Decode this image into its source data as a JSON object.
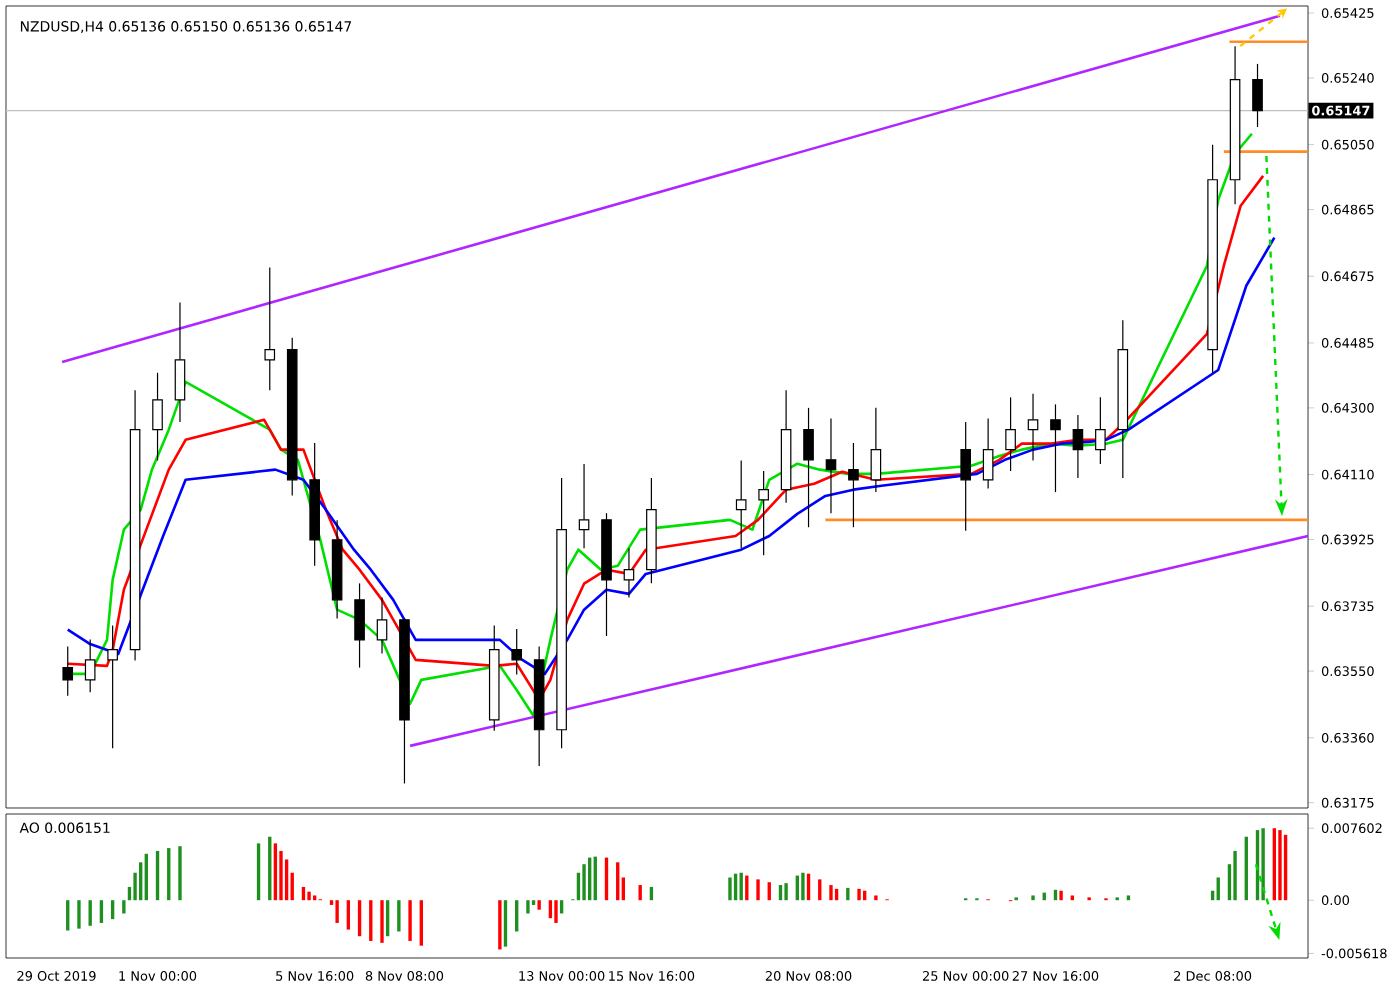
{
  "chart_data": [
    {
      "type": "candlestick",
      "title": "NZDUSD,H4 0.65136 0.65150 0.65136 0.65147",
      "xlim": [
        "2019-10-27T12:00",
        "2019-12-05T04:00"
      ],
      "ylim": [
        0.6316,
        0.65445
      ],
      "tick_labels": "y",
      "yticks": [
        {
          "value": 0.63175,
          "label": "0.63175"
        },
        {
          "value": 0.6336,
          "label": "0.63360"
        },
        {
          "value": 0.6355,
          "label": "0.63550"
        },
        {
          "value": 0.63735,
          "label": "0.63735"
        },
        {
          "value": 0.63925,
          "label": "0.63925"
        },
        {
          "value": 0.6411,
          "label": "0.64110"
        },
        {
          "value": 0.643,
          "label": "0.64300"
        },
        {
          "value": 0.64485,
          "label": "0.64485"
        },
        {
          "value": 0.64675,
          "label": "0.64675"
        },
        {
          "value": 0.64865,
          "label": "0.64865"
        },
        {
          "value": 0.6505,
          "label": "0.65050"
        },
        {
          "value": 0.6524,
          "label": "0.65240"
        },
        {
          "value": 0.65425,
          "label": "0.65425"
        }
      ],
      "ref_lines": [
        {
          "axis": "y",
          "value": 0.65147,
          "label": "0.65147",
          "color": "#c0c0c0"
        }
      ],
      "x": [
        "2019-10-29T08:00",
        "2019-10-30T00:00",
        "2019-10-30T16:00",
        "2019-10-31T08:00",
        "2019-11-01T00:00",
        "2019-11-01T16:00",
        "2019-11-04T08:00",
        "2019-11-05T00:00",
        "2019-11-05T16:00",
        "2019-11-06T08:00",
        "2019-11-07T00:00",
        "2019-11-07T16:00",
        "2019-11-08T08:00",
        "2019-11-11T00:00",
        "2019-11-11T16:00",
        "2019-11-12T08:00",
        "2019-11-13T00:00",
        "2019-11-13T16:00",
        "2019-11-14T08:00",
        "2019-11-15T00:00",
        "2019-11-15T16:00",
        "2019-11-18T08:00",
        "2019-11-19T00:00",
        "2019-11-19T16:00",
        "2019-11-20T08:00",
        "2019-11-21T00:00",
        "2019-11-21T16:00",
        "2019-11-22T08:00",
        "2019-11-25T00:00",
        "2019-11-25T16:00",
        "2019-11-26T08:00",
        "2019-11-27T00:00",
        "2019-11-27T16:00",
        "2019-11-28T08:00",
        "2019-11-29T00:00",
        "2019-11-29T16:00",
        "2019-12-02T08:00",
        "2019-12-03T00:00",
        "2019-12-03T16:00"
      ],
      "ohlc": [
        [
          0.6356,
          0.6362,
          0.6348,
          0.63525
        ],
        [
          0.63525,
          0.6364,
          0.6349,
          0.63582
        ],
        [
          0.63582,
          0.6368,
          0.6333,
          0.63611
        ],
        [
          0.63611,
          0.6435,
          0.6358,
          0.64238
        ],
        [
          0.64238,
          0.644,
          0.6415,
          0.64323
        ],
        [
          0.64323,
          0.646,
          0.6426,
          0.64437
        ],
        [
          0.64437,
          0.647,
          0.6435,
          0.64466
        ],
        [
          0.64466,
          0.645,
          0.6405,
          0.64095
        ],
        [
          0.64095,
          0.642,
          0.6385,
          0.63924
        ],
        [
          0.63924,
          0.6398,
          0.637,
          0.63753
        ],
        [
          0.63753,
          0.638,
          0.6356,
          0.63639
        ],
        [
          0.63639,
          0.6376,
          0.636,
          0.63696
        ],
        [
          0.63696,
          0.637,
          0.6323,
          0.63411
        ],
        [
          0.63411,
          0.6368,
          0.6338,
          0.63611
        ],
        [
          0.63611,
          0.6367,
          0.6354,
          0.63582
        ],
        [
          0.63582,
          0.6362,
          0.6328,
          0.63383
        ],
        [
          0.63383,
          0.641,
          0.6333,
          0.63953
        ],
        [
          0.63953,
          0.6414,
          0.639,
          0.63981
        ],
        [
          0.63981,
          0.64,
          0.6365,
          0.6381
        ],
        [
          0.6381,
          0.639,
          0.6376,
          0.63839
        ],
        [
          0.63839,
          0.641,
          0.638,
          0.6401
        ],
        [
          0.6401,
          0.6415,
          0.639,
          0.64038
        ],
        [
          0.64038,
          0.6412,
          0.6388,
          0.64067
        ],
        [
          0.64067,
          0.6435,
          0.6403,
          0.64238
        ],
        [
          0.64238,
          0.643,
          0.6396,
          0.64152
        ],
        [
          0.64152,
          0.6427,
          0.64,
          0.64124
        ],
        [
          0.64124,
          0.642,
          0.6396,
          0.64095
        ],
        [
          0.64095,
          0.643,
          0.6406,
          0.64181
        ],
        [
          0.64181,
          0.6426,
          0.6395,
          0.64095
        ],
        [
          0.64095,
          0.6427,
          0.6407,
          0.64181
        ],
        [
          0.64181,
          0.6433,
          0.6412,
          0.64238
        ],
        [
          0.64238,
          0.6434,
          0.6415,
          0.64266
        ],
        [
          0.64266,
          0.6431,
          0.6406,
          0.64238
        ],
        [
          0.64238,
          0.6428,
          0.641,
          0.64181
        ],
        [
          0.64181,
          0.6433,
          0.6414,
          0.64238
        ],
        [
          0.64238,
          0.6455,
          0.641,
          0.64466
        ],
        [
          0.64466,
          0.6505,
          0.644,
          0.6495
        ],
        [
          0.6495,
          0.6533,
          0.6488,
          0.65235
        ],
        [
          0.65235,
          0.6528,
          0.651,
          0.65147
        ]
      ],
      "series": [
        {
          "type": "line",
          "color": "#00e000",
          "x": [
            "2019-10-29T08:00",
            "2019-10-30T00:00",
            "2019-10-30T12:00",
            "2019-10-30T16:00",
            "2019-10-31T00:00",
            "2019-10-31T12:00",
            "2019-10-31T20:00",
            "2019-11-01T08:00",
            "2019-11-01T20:00",
            "2019-11-04T08:00",
            "2019-11-04T16:00",
            "2019-11-05T04:00",
            "2019-11-05T20:00",
            "2019-11-06T08:00",
            "2019-11-07T00:00",
            "2019-11-07T16:00",
            "2019-11-08T12:00",
            "2019-11-08T20:00",
            "2019-11-11T04:00",
            "2019-11-11T16:00",
            "2019-11-12T04:00",
            "2019-11-12T16:00",
            "2019-11-13T04:00",
            "2019-11-13T12:00",
            "2019-11-14T04:00",
            "2019-11-14T16:00",
            "2019-11-15T08:00",
            "2019-11-18T00:00",
            "2019-11-18T16:00",
            "2019-11-19T04:00",
            "2019-11-20T00:00",
            "2019-11-20T16:00",
            "2019-11-21T12:00",
            "2019-11-22T08:00",
            "2019-11-25T04:00",
            "2019-11-26T00:00",
            "2019-11-26T16:00",
            "2019-11-27T12:00",
            "2019-11-28T08:00",
            "2019-11-29T04:00",
            "2019-11-29T16:00",
            "2019-12-02T04:00",
            "2019-12-02T12:00",
            "2019-12-03T00:00",
            "2019-12-03T12:00"
          ],
          "values": [
            0.63542,
            0.63542,
            0.63639,
            0.6381,
            0.63953,
            0.6401,
            0.64124,
            0.64238,
            0.64374,
            0.64238,
            0.64181,
            0.64152,
            0.63924,
            0.63725,
            0.63696,
            0.63639,
            0.63457,
            0.63525,
            0.63565,
            0.63496,
            0.63422,
            0.63639,
            0.63839,
            0.63896,
            0.63839,
            0.6385,
            0.63953,
            0.63981,
            0.63953,
            0.64095,
            0.64141,
            0.64124,
            0.64112,
            0.64112,
            0.64135,
            0.64163,
            0.64181,
            0.64198,
            0.64192,
            0.64198,
            0.64209,
            0.64705,
            0.64893,
            0.65024,
            0.65081
          ]
        },
        {
          "type": "line",
          "color": "#ff0000",
          "x": [
            "2019-10-29T08:00",
            "2019-10-30T12:00",
            "2019-10-30T16:00",
            "2019-10-31T00:00",
            "2019-10-31T16:00",
            "2019-11-01T08:00",
            "2019-11-01T20:00",
            "2019-11-04T04:00",
            "2019-11-04T16:00",
            "2019-11-05T08:00",
            "2019-11-06T00:00",
            "2019-11-06T12:00",
            "2019-11-07T00:00",
            "2019-11-07T16:00",
            "2019-11-08T04:00",
            "2019-11-08T16:00",
            "2019-11-11T00:00",
            "2019-11-11T16:00",
            "2019-11-12T08:00",
            "2019-11-12T16:00",
            "2019-11-13T04:00",
            "2019-11-13T16:00",
            "2019-11-14T08:00",
            "2019-11-15T00:00",
            "2019-11-15T12:00",
            "2019-11-18T04:00",
            "2019-11-18T20:00",
            "2019-11-19T16:00",
            "2019-11-20T12:00",
            "2019-11-21T08:00",
            "2019-11-22T08:00",
            "2019-11-25T04:00",
            "2019-11-26T00:00",
            "2019-11-26T16:00",
            "2019-11-27T12:00",
            "2019-11-28T08:00",
            "2019-11-29T04:00",
            "2019-11-29T16:00",
            "2019-12-02T04:00",
            "2019-12-02T16:00",
            "2019-12-03T04:00",
            "2019-12-03T20:00"
          ],
          "values": [
            0.63571,
            0.63565,
            0.6361,
            0.63782,
            0.63953,
            0.64124,
            0.64209,
            0.64266,
            0.64181,
            0.64181,
            0.6401,
            0.63896,
            0.63839,
            0.63753,
            0.63668,
            0.63582,
            0.63565,
            0.63571,
            0.63468,
            0.63525,
            0.63696,
            0.63799,
            0.63839,
            0.63827,
            0.63896,
            0.63935,
            0.63981,
            0.64067,
            0.64084,
            0.64118,
            0.64095,
            0.64112,
            0.64152,
            0.64198,
            0.64198,
            0.64209,
            0.64209,
            0.64254,
            0.64511,
            0.64705,
            0.64876,
            0.64961
          ]
        },
        {
          "type": "line",
          "color": "#0000ff",
          "x": [
            "2019-10-29T08:00",
            "2019-10-30T00:00",
            "2019-10-30T20:00",
            "2019-10-31T08:00",
            "2019-11-01T04:00",
            "2019-11-01T20:00",
            "2019-11-04T12:00",
            "2019-11-05T08:00",
            "2019-11-06T00:00",
            "2019-11-06T20:00",
            "2019-11-07T08:00",
            "2019-11-08T00:00",
            "2019-11-08T16:00",
            "2019-11-11T04:00",
            "2019-11-11T20:00",
            "2019-11-12T12:00",
            "2019-11-13T04:00",
            "2019-11-13T16:00",
            "2019-11-14T08:00",
            "2019-11-15T00:00",
            "2019-11-15T12:00",
            "2019-11-18T08:00",
            "2019-11-19T04:00",
            "2019-11-20T00:00",
            "2019-11-20T20:00",
            "2019-11-21T16:00",
            "2019-11-22T12:00",
            "2019-11-25T08:00",
            "2019-11-26T04:00",
            "2019-11-27T00:00",
            "2019-11-27T20:00",
            "2019-11-28T16:00",
            "2019-11-29T04:00",
            "2019-11-29T20:00",
            "2019-12-02T12:00",
            "2019-12-03T08:00",
            "2019-12-04T04:00"
          ],
          "values": [
            0.63668,
            0.63627,
            0.63599,
            null,
            0.63935,
            0.64095,
            0.64124,
            0.64095,
            0.6401,
            0.63896,
            0.63839,
            0.63753,
            0.63639,
            0.63639,
            0.63582,
            0.63542,
            0.63639,
            0.63725,
            0.63782,
            0.6377,
            0.63827,
            0.63896,
            0.63935,
            0.63998,
            0.64049,
            0.64067,
            0.64078,
            0.64112,
            0.64152,
            0.64181,
            0.64198,
            0.64203,
            0.64209,
            0.64238,
            0.64408,
            0.64648,
            0.64785
          ]
        },
        {
          "type": "line",
          "color": "#b026ff",
          "x": [
            "2019-10-29T04:00",
            "2019-12-04T08:00"
          ],
          "values": [
            0.64431,
            0.65417
          ]
        },
        {
          "type": "line",
          "color": "#b026ff",
          "x": [
            "2019-11-08T12:00",
            "2019-12-05T04:00"
          ],
          "values": [
            0.63337,
            0.63935
          ]
        },
        {
          "type": "line",
          "color": "#ff8c26",
          "x": [
            "2019-12-02T20:00",
            "2019-12-05T04:00"
          ],
          "values": [
            0.65343,
            0.65343
          ]
        },
        {
          "type": "line",
          "color": "#ff8c26",
          "x": [
            "2019-12-02T16:00",
            "2019-12-05T04:00"
          ],
          "values": [
            0.6503,
            0.6503
          ]
        },
        {
          "type": "line",
          "color": "#ff8c26",
          "x": [
            "2019-11-20T20:00",
            "2019-12-05T04:00"
          ],
          "values": [
            0.63981,
            0.63981
          ]
        }
      ]
    },
    {
      "type": "bar",
      "title": "AO 0.006151",
      "xlim": [
        "2019-10-27T12:00",
        "2019-12-05T04:00"
      ],
      "ylim": [
        -0.0061,
        0.0091
      ],
      "yticks": [
        0.007602,
        {
          "value": 0,
          "label": "0.00"
        },
        -0.005618
      ],
      "xticks": [
        {
          "value": "2019-10-29",
          "label": "29 Oct 2019"
        },
        {
          "value": "2019-11-01T00:00",
          "label": "1 Nov 00:00"
        },
        {
          "value": "2019-11-05T16:00",
          "label": "5 Nov 16:00"
        },
        {
          "value": "2019-11-08T08:00",
          "label": "8 Nov 08:00"
        },
        {
          "value": "2019-11-13T00:00",
          "label": "13 Nov 00:00"
        },
        {
          "value": "2019-11-15T16:00",
          "label": "15 Nov 16:00"
        },
        {
          "value": "2019-11-20T08:00",
          "label": "20 Nov 08:00"
        },
        {
          "value": "2019-11-25T00:00",
          "label": "25 Nov 00:00"
        },
        {
          "value": "2019-11-27T16:00",
          "label": "27 Nov 16:00"
        },
        {
          "value": "2019-12-02T08:00",
          "label": "2 Dec 08:00"
        }
      ],
      "x": [
        "2019-10-29T08:00",
        "2019-10-29T16:00",
        "2019-10-30T00:00",
        "2019-10-30T08:00",
        "2019-10-30T16:00",
        "2019-10-31T00:00",
        "2019-10-31T04:00",
        "2019-10-31T08:00",
        "2019-10-31T12:00",
        "2019-10-31T16:00",
        "2019-11-01T00:00",
        "2019-11-01T08:00",
        "2019-11-01T16:00",
        "2019-11-04T00:00",
        "2019-11-04T08:00",
        "2019-11-04T12:00",
        "2019-11-04T16:00",
        "2019-11-04T20:00",
        "2019-11-05T00:00",
        "2019-11-05T08:00",
        "2019-11-05T12:00",
        "2019-11-05T16:00",
        "2019-11-05T20:00",
        "2019-11-06T04:00",
        "2019-11-06T08:00",
        "2019-11-06T16:00",
        "2019-11-07T00:00",
        "2019-11-07T08:00",
        "2019-11-07T16:00",
        "2019-11-07T20:00",
        "2019-11-08T04:00",
        "2019-11-08T12:00",
        "2019-11-08T20:00",
        "2019-11-11T04:00",
        "2019-11-11T08:00",
        "2019-11-11T16:00",
        "2019-11-12T00:00",
        "2019-11-12T04:00",
        "2019-11-12T08:00",
        "2019-11-12T16:00",
        "2019-11-12T20:00",
        "2019-11-13T00:00",
        "2019-11-13T08:00",
        "2019-11-13T12:00",
        "2019-11-13T16:00",
        "2019-11-13T20:00",
        "2019-11-14T00:00",
        "2019-11-14T08:00",
        "2019-11-14T16:00",
        "2019-11-14T20:00",
        "2019-11-15T08:00",
        "2019-11-15T16:00",
        "2019-11-18T00:00",
        "2019-11-18T04:00",
        "2019-11-18T08:00",
        "2019-11-18T12:00",
        "2019-11-18T20:00",
        "2019-11-19T04:00",
        "2019-11-19T12:00",
        "2019-11-19T16:00",
        "2019-11-20T00:00",
        "2019-11-20T04:00",
        "2019-11-20T08:00",
        "2019-11-20T16:00",
        "2019-11-21T00:00",
        "2019-11-21T04:00",
        "2019-11-21T12:00",
        "2019-11-21T20:00",
        "2019-11-22T00:00",
        "2019-11-22T08:00",
        "2019-11-22T16:00",
        "2019-11-25T00:00",
        "2019-11-25T08:00",
        "2019-11-25T16:00",
        "2019-11-26T08:00",
        "2019-11-26T12:00",
        "2019-11-27T00:00",
        "2019-11-27T08:00",
        "2019-11-27T16:00",
        "2019-11-27T20:00",
        "2019-11-28T04:00",
        "2019-11-28T16:00",
        "2019-11-29T04:00",
        "2019-11-29T12:00",
        "2019-11-29T20:00",
        "2019-12-02T08:00",
        "2019-12-02T12:00",
        "2019-12-02T20:00",
        "2019-12-03T00:00",
        "2019-12-03T08:00",
        "2019-12-03T16:00",
        "2019-12-03T20:00",
        "2019-12-04T04:00",
        "2019-12-04T08:00",
        "2019-12-04T12:00"
      ],
      "values": [
        -0.0032,
        -0.003,
        -0.0027,
        -0.0024,
        -0.002,
        -0.0014,
        0.0014,
        0.0029,
        0.004,
        0.0049,
        0.0052,
        0.0055,
        0.0057,
        0.006,
        0.0067,
        0.006,
        0.0052,
        0.0043,
        0.0029,
        0.0014,
        0.0009,
        0.0005,
        0.0001,
        -0.0005,
        -0.0024,
        -0.0031,
        -0.0038,
        -0.0043,
        -0.0045,
        -0.0038,
        -0.0033,
        -0.0043,
        -0.0048,
        -0.0052,
        -0.0049,
        -0.0033,
        -0.0014,
        -0.0005,
        -0.001,
        -0.0019,
        -0.0024,
        -0.0014,
        0.0001,
        0.0029,
        0.0038,
        0.0045,
        0.0046,
        0.0045,
        0.004,
        0.0024,
        0.0016,
        0.0014,
        0.0024,
        0.0028,
        0.0029,
        0.0026,
        0.0022,
        0.0019,
        0.0016,
        0.0018,
        0.0026,
        0.0029,
        0.0028,
        0.0022,
        0.0016,
        0.0012,
        0.0013,
        0.0012,
        0.001,
        0.0005,
        0.0001,
        0.0002,
        0.0002,
        0.0001,
        -0.0001,
        0.0003,
        0.0005,
        0.0008,
        0.0011,
        0.001,
        0.0005,
        0.0003,
        0.0002,
        0.0003,
        0.0005,
        0.001,
        0.0024,
        0.0038,
        0.0052,
        0.0067,
        0.0074,
        0.0076,
        0.0076,
        0.0074,
        0.0069
      ],
      "colors": [
        "#1f8f1f",
        "#1f8f1f",
        "#1f8f1f",
        "#1f8f1f",
        "#1f8f1f",
        "#1f8f1f",
        "#1f8f1f",
        "#1f8f1f",
        "#1f8f1f",
        "#1f8f1f",
        "#1f8f1f",
        "#1f8f1f",
        "#1f8f1f",
        "#1f8f1f",
        "#1f8f1f",
        "#ff0000",
        "#ff0000",
        "#ff0000",
        "#ff0000",
        "#ff0000",
        "#ff0000",
        "#ff0000",
        "#ff0000",
        "#ff0000",
        "#ff0000",
        "#ff0000",
        "#ff0000",
        "#ff0000",
        "#ff0000",
        "#1f8f1f",
        "#1f8f1f",
        "#ff0000",
        "#ff0000",
        "#ff0000",
        "#1f8f1f",
        "#1f8f1f",
        "#1f8f1f",
        "#1f8f1f",
        "#ff0000",
        "#ff0000",
        "#ff0000",
        "#1f8f1f",
        "#1f8f1f",
        "#1f8f1f",
        "#1f8f1f",
        "#1f8f1f",
        "#1f8f1f",
        "#ff0000",
        "#ff0000",
        "#ff0000",
        "#ff0000",
        "#1f8f1f",
        "#1f8f1f",
        "#1f8f1f",
        "#1f8f1f",
        "#ff0000",
        "#ff0000",
        "#ff0000",
        "#1f8f1f",
        "#1f8f1f",
        "#1f8f1f",
        "#1f8f1f",
        "#ff0000",
        "#ff0000",
        "#ff0000",
        "#ff0000",
        "#1f8f1f",
        "#ff0000",
        "#ff0000",
        "#ff0000",
        "#ff0000",
        "#1f8f1f",
        "#1f8f1f",
        "#ff0000",
        "#ff0000",
        "#1f8f1f",
        "#1f8f1f",
        "#1f8f1f",
        "#1f8f1f",
        "#ff0000",
        "#ff0000",
        "#ff0000",
        "#ff0000",
        "#1f8f1f",
        "#1f8f1f",
        "#1f8f1f",
        "#1f8f1f",
        "#1f8f1f",
        "#1f8f1f",
        "#1f8f1f",
        "#1f8f1f",
        "#1f8f1f",
        "#ff0000",
        "#ff0000",
        "#ff0000"
      ]
    }
  ]
}
